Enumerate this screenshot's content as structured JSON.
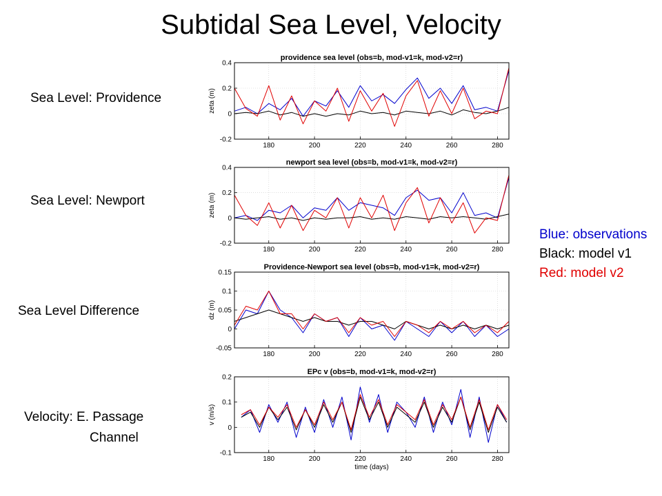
{
  "slide": {
    "title": "Subtidal Sea Level, Velocity",
    "labels": {
      "providence": "Sea Level: Providence",
      "newport": "Sea Level: Newport",
      "difference": "Sea Level Difference",
      "velocity_line1": "Velocity: E. Passage",
      "velocity_line2": "Channel"
    },
    "legend": [
      {
        "text": "Blue: observations",
        "color": "#0000cc"
      },
      {
        "text": "Black: model v1",
        "color": "#000000"
      },
      {
        "text": "Red: model v2",
        "color": "#e00000"
      }
    ]
  },
  "chart_data": [
    {
      "type": "line",
      "title": "providence sea level (obs=b, mod-v1=k, mod-v2=r)",
      "xlabel": "",
      "ylabel": "zeta (m)",
      "xlim": [
        165,
        285
      ],
      "ylim": [
        -0.2,
        0.4
      ],
      "xticks": [
        "180",
        "200",
        "220",
        "240",
        "260",
        "280"
      ],
      "yticks": [
        "-0.2",
        "0",
        "0.2",
        "0.4"
      ],
      "grid": true,
      "x": [
        165,
        170,
        175,
        180,
        185,
        190,
        195,
        200,
        205,
        210,
        215,
        220,
        225,
        230,
        235,
        240,
        245,
        250,
        255,
        260,
        265,
        270,
        275,
        280,
        285
      ],
      "series": [
        {
          "name": "obs",
          "color": "#0000cc",
          "values": [
            0.02,
            0.05,
            0.0,
            0.08,
            0.03,
            0.12,
            -0.02,
            0.1,
            0.06,
            0.18,
            0.05,
            0.22,
            0.1,
            0.15,
            0.08,
            0.19,
            0.28,
            0.12,
            0.2,
            0.08,
            0.22,
            0.03,
            0.05,
            0.02,
            0.34
          ]
        },
        {
          "name": "mod-v1",
          "color": "#000000",
          "values": [
            0.0,
            0.01,
            0.0,
            0.02,
            -0.01,
            0.01,
            -0.02,
            0.0,
            -0.02,
            0.0,
            -0.01,
            0.02,
            0.0,
            0.01,
            -0.01,
            0.02,
            0.01,
            0.0,
            0.02,
            -0.01,
            0.03,
            0.01,
            0.0,
            0.02,
            0.05
          ]
        },
        {
          "name": "mod-v2",
          "color": "#e00000",
          "values": [
            0.2,
            0.04,
            -0.02,
            0.22,
            -0.05,
            0.14,
            -0.08,
            0.1,
            0.02,
            0.2,
            -0.06,
            0.18,
            0.02,
            0.16,
            -0.1,
            0.14,
            0.26,
            -0.02,
            0.18,
            0.0,
            0.2,
            -0.04,
            0.02,
            0.0,
            0.36
          ]
        }
      ]
    },
    {
      "type": "line",
      "title": "newport sea level (obs=b, mod-v1=k, mod-v2=r)",
      "xlabel": "",
      "ylabel": "zeta (m)",
      "xlim": [
        165,
        285
      ],
      "ylim": [
        -0.2,
        0.4
      ],
      "xticks": [
        "180",
        "200",
        "220",
        "240",
        "260",
        "280"
      ],
      "yticks": [
        "-0.2",
        "0",
        "0.2",
        "0.4"
      ],
      "grid": true,
      "x": [
        165,
        170,
        175,
        180,
        185,
        190,
        195,
        200,
        205,
        210,
        215,
        220,
        225,
        230,
        235,
        240,
        245,
        250,
        255,
        260,
        265,
        270,
        275,
        280,
        285
      ],
      "series": [
        {
          "name": "obs",
          "color": "#0000cc",
          "values": [
            0.0,
            0.02,
            -0.02,
            0.06,
            0.04,
            0.1,
            0.0,
            0.08,
            0.06,
            0.16,
            0.06,
            0.12,
            0.1,
            0.08,
            0.02,
            0.16,
            0.22,
            0.14,
            0.16,
            0.04,
            0.2,
            0.02,
            0.04,
            0.0,
            0.32
          ]
        },
        {
          "name": "mod-v1",
          "color": "#000000",
          "values": [
            0.0,
            -0.01,
            0.0,
            0.01,
            -0.01,
            0.0,
            -0.02,
            0.0,
            -0.01,
            0.0,
            0.0,
            0.01,
            -0.01,
            0.0,
            -0.01,
            0.01,
            0.0,
            -0.01,
            0.01,
            0.0,
            0.01,
            0.0,
            -0.01,
            0.01,
            0.03
          ]
        },
        {
          "name": "mod-v2",
          "color": "#e00000",
          "values": [
            0.18,
            0.02,
            -0.06,
            0.12,
            -0.08,
            0.1,
            -0.1,
            0.06,
            0.0,
            0.16,
            -0.08,
            0.16,
            0.0,
            0.18,
            -0.1,
            0.12,
            0.24,
            -0.04,
            0.16,
            -0.04,
            0.12,
            -0.12,
            0.0,
            -0.02,
            0.34
          ]
        }
      ]
    },
    {
      "type": "line",
      "title": "Providence-Newport sea level (obs=b, mod-v1=k, mod-v2=r)",
      "xlabel": "",
      "ylabel": "dz (m)",
      "xlim": [
        165,
        285
      ],
      "ylim": [
        -0.05,
        0.15
      ],
      "xticks": [
        "180",
        "200",
        "220",
        "240",
        "260",
        "280"
      ],
      "yticks": [
        "-0.05",
        "0",
        "0.05",
        "0.1",
        "0.15"
      ],
      "grid": true,
      "x": [
        165,
        170,
        175,
        180,
        185,
        190,
        195,
        200,
        205,
        210,
        215,
        220,
        225,
        230,
        235,
        240,
        245,
        250,
        255,
        260,
        265,
        270,
        275,
        280,
        285
      ],
      "series": [
        {
          "name": "obs",
          "color": "#0000cc",
          "values": [
            0.0,
            0.05,
            0.04,
            0.1,
            0.05,
            0.03,
            -0.01,
            0.04,
            0.02,
            0.03,
            -0.02,
            0.03,
            0.0,
            0.01,
            -0.03,
            0.02,
            0.0,
            -0.02,
            0.02,
            -0.01,
            0.02,
            -0.02,
            0.01,
            -0.02,
            0.0
          ]
        },
        {
          "name": "mod-v1",
          "color": "#000000",
          "values": [
            0.02,
            0.03,
            0.04,
            0.05,
            0.04,
            0.03,
            0.02,
            0.03,
            0.02,
            0.02,
            0.01,
            0.02,
            0.02,
            0.01,
            0.0,
            0.02,
            0.01,
            0.0,
            0.01,
            0.0,
            0.01,
            0.0,
            0.01,
            0.0,
            0.01
          ]
        },
        {
          "name": "mod-v2",
          "color": "#e00000",
          "values": [
            0.01,
            0.06,
            0.05,
            0.1,
            0.04,
            0.04,
            0.0,
            0.04,
            0.02,
            0.03,
            -0.01,
            0.03,
            0.01,
            0.02,
            -0.02,
            0.02,
            0.01,
            -0.01,
            0.02,
            0.0,
            0.02,
            -0.01,
            0.01,
            -0.01,
            0.02
          ]
        }
      ]
    },
    {
      "type": "line",
      "title": "EPc v (obs=b, mod-v1=k, mod-v2=r)",
      "xlabel": "time (days)",
      "ylabel": "v (m/s)",
      "xlim": [
        165,
        285
      ],
      "ylim": [
        -0.1,
        0.2
      ],
      "xticks": [
        "180",
        "200",
        "220",
        "240",
        "260",
        "280"
      ],
      "yticks": [
        "-0.1",
        "0",
        "0.1",
        "0.2"
      ],
      "grid": true,
      "x": [
        168,
        172,
        176,
        180,
        184,
        188,
        192,
        196,
        200,
        204,
        208,
        212,
        216,
        220,
        224,
        228,
        232,
        236,
        240,
        244,
        248,
        252,
        256,
        260,
        264,
        268,
        272,
        276,
        280,
        284
      ],
      "series": [
        {
          "name": "obs",
          "color": "#0000cc",
          "values": [
            0.04,
            0.07,
            -0.02,
            0.09,
            0.02,
            0.1,
            -0.04,
            0.08,
            -0.02,
            0.11,
            0.0,
            0.12,
            -0.05,
            0.16,
            0.02,
            0.13,
            -0.02,
            0.1,
            0.06,
            0.0,
            0.12,
            -0.02,
            0.1,
            0.01,
            0.15,
            -0.04,
            0.12,
            -0.06,
            0.09,
            0.02
          ]
        },
        {
          "name": "mod-v1",
          "color": "#000000",
          "values": [
            0.04,
            0.06,
            0.0,
            0.08,
            0.03,
            0.08,
            -0.01,
            0.07,
            0.0,
            0.09,
            0.02,
            0.1,
            -0.02,
            0.12,
            0.03,
            0.1,
            0.0,
            0.08,
            0.05,
            0.02,
            0.1,
            0.0,
            0.08,
            0.02,
            0.12,
            -0.01,
            0.1,
            -0.02,
            0.08,
            0.02
          ]
        },
        {
          "name": "mod-v2",
          "color": "#e00000",
          "values": [
            0.05,
            0.07,
            0.01,
            0.08,
            0.04,
            0.09,
            0.0,
            0.07,
            0.01,
            0.1,
            0.03,
            0.1,
            -0.01,
            0.13,
            0.04,
            0.11,
            0.01,
            0.09,
            0.06,
            0.03,
            0.11,
            0.01,
            0.09,
            0.03,
            0.12,
            0.0,
            0.11,
            -0.01,
            0.09,
            0.03
          ]
        }
      ]
    }
  ]
}
